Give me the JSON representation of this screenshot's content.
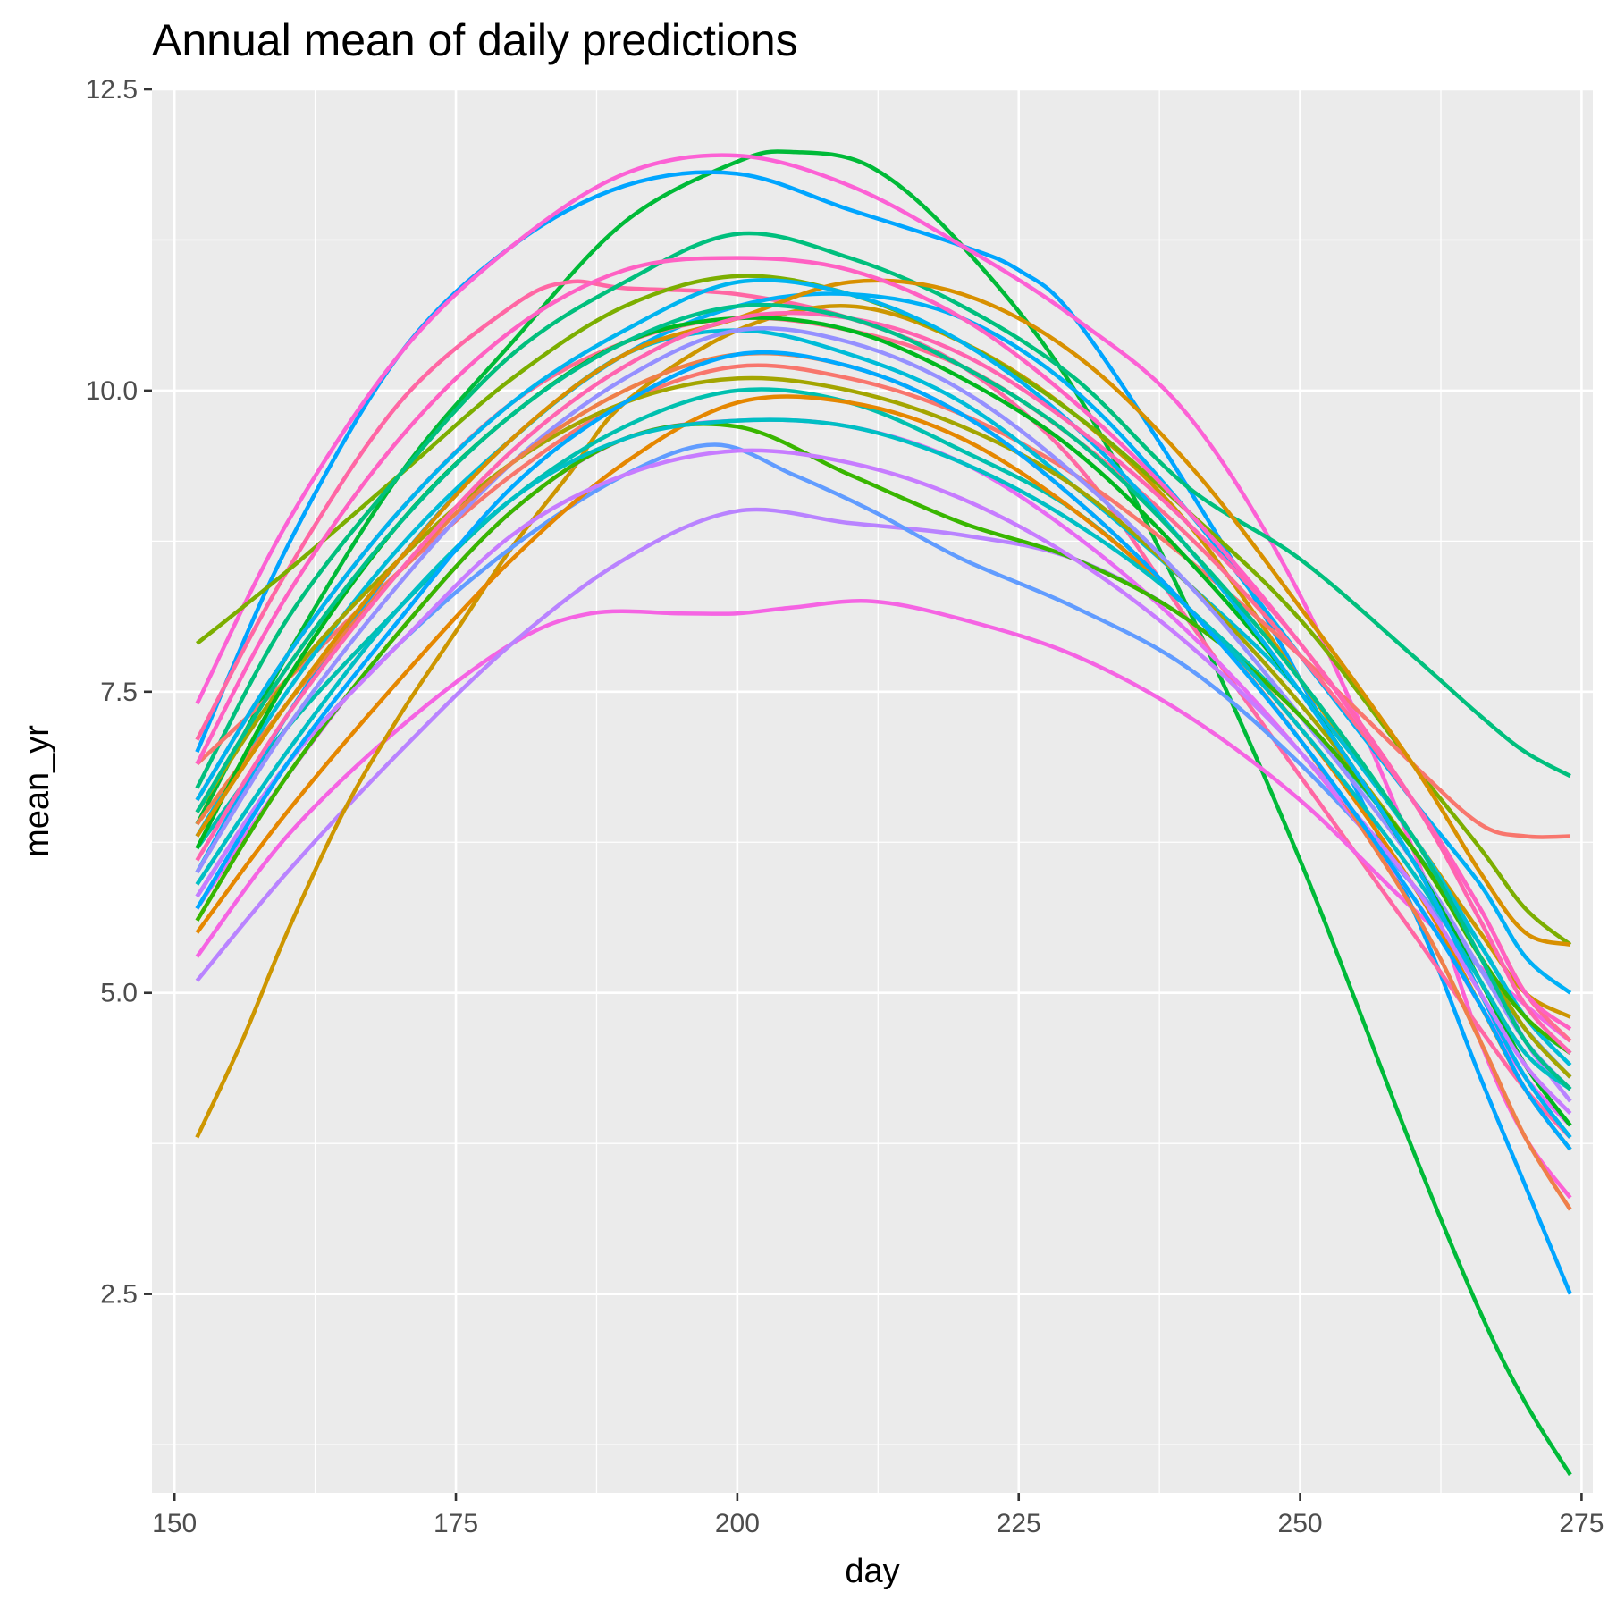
{
  "chart_data": {
    "type": "line",
    "title": "Annual mean of daily predictions",
    "xlabel": "day",
    "ylabel": "mean_yr",
    "xlim": [
      148,
      276
    ],
    "ylim": [
      0.85,
      12.5
    ],
    "x_ticks": [
      150,
      175,
      200,
      225,
      250,
      275
    ],
    "x_tick_labels": [
      "150",
      "175",
      "200",
      "225",
      "250",
      "275"
    ],
    "y_ticks": [
      2.5,
      5.0,
      7.5,
      10.0,
      12.5
    ],
    "y_tick_labels": [
      "2.5",
      "5.0",
      "7.5",
      "10.0",
      "12.5"
    ],
    "grid": true,
    "legend": "none",
    "panel_background": "#ebebeb",
    "series": [
      {
        "color": "#00ba38",
        "x": [
          152,
          160,
          170,
          180,
          190,
          200,
          205,
          212,
          220,
          230,
          240,
          250,
          260,
          266,
          270,
          274
        ],
        "y": [
          6.4,
          7.8,
          9.3,
          10.4,
          11.4,
          11.9,
          11.98,
          11.85,
          11.2,
          10.0,
          8.2,
          6.1,
          3.7,
          2.35,
          1.6,
          1.0
        ]
      },
      {
        "color": "#00a5ff",
        "x": [
          152,
          160,
          170,
          180,
          190,
          200,
          210,
          220,
          225,
          230,
          240,
          250,
          260,
          266,
          270,
          274
        ],
        "y": [
          7.0,
          8.7,
          10.3,
          11.2,
          11.7,
          11.8,
          11.5,
          11.2,
          11.0,
          10.6,
          9.2,
          7.6,
          5.7,
          4.3,
          3.4,
          2.5
        ]
      },
      {
        "color": "#fc61d5",
        "x": [
          152,
          160,
          170,
          180,
          190,
          200,
          210,
          220,
          230,
          240,
          250,
          260,
          266,
          270,
          274
        ],
        "y": [
          7.4,
          8.9,
          10.3,
          11.2,
          11.8,
          11.95,
          11.7,
          11.2,
          10.6,
          9.8,
          8.3,
          6.2,
          4.6,
          3.8,
          3.3
        ]
      },
      {
        "color": "#ff67a4",
        "x": [
          152,
          160,
          170,
          180,
          185,
          190,
          200,
          210,
          220,
          230,
          240,
          250,
          260,
          266,
          270,
          274
        ],
        "y": [
          7.1,
          8.5,
          9.9,
          10.7,
          10.9,
          10.85,
          10.8,
          10.6,
          10.2,
          9.4,
          8.1,
          6.8,
          5.5,
          4.7,
          4.2,
          3.8
        ]
      },
      {
        "color": "#f564e3",
        "x": [
          152,
          160,
          170,
          180,
          187,
          195,
          200,
          205,
          212,
          220,
          230,
          240,
          250,
          260,
          270,
          274
        ],
        "y": [
          5.3,
          6.3,
          7.2,
          7.9,
          8.15,
          8.15,
          8.15,
          8.2,
          8.25,
          8.1,
          7.8,
          7.3,
          6.6,
          5.7,
          4.9,
          4.6
        ]
      },
      {
        "color": "#b983ff",
        "x": [
          152,
          160,
          170,
          180,
          190,
          200,
          210,
          220,
          230,
          240,
          250,
          260,
          266,
          270,
          274
        ],
        "y": [
          5.1,
          6.0,
          7.0,
          7.9,
          8.6,
          9.0,
          8.9,
          8.8,
          8.6,
          8.1,
          7.3,
          6.2,
          5.3,
          4.6,
          4.1
        ]
      },
      {
        "color": "#cd9600",
        "x": [
          152,
          156,
          160,
          165,
          170,
          175,
          180,
          185,
          190,
          200,
          210,
          220,
          230,
          240,
          250,
          260,
          266,
          270,
          274
        ],
        "y": [
          3.8,
          4.6,
          5.5,
          6.5,
          7.3,
          8.0,
          8.7,
          9.3,
          9.9,
          10.5,
          10.7,
          10.4,
          9.8,
          8.9,
          7.6,
          6.3,
          5.5,
          5.0,
          4.8
        ]
      },
      {
        "color": "#7cae00",
        "x": [
          152,
          160,
          170,
          180,
          190,
          200,
          210,
          220,
          230,
          240,
          250,
          260,
          266,
          270,
          274
        ],
        "y": [
          7.9,
          8.5,
          9.3,
          10.1,
          10.7,
          10.95,
          10.8,
          10.4,
          9.8,
          9.0,
          8.1,
          6.9,
          6.2,
          5.7,
          5.4
        ]
      },
      {
        "color": "#00bf7d",
        "x": [
          152,
          160,
          170,
          180,
          190,
          200,
          210,
          220,
          230,
          240,
          250,
          260,
          266,
          270,
          274
        ],
        "y": [
          6.7,
          8.1,
          9.3,
          10.3,
          10.9,
          11.3,
          11.1,
          10.7,
          10.1,
          9.2,
          8.6,
          7.8,
          7.3,
          7.0,
          6.8
        ]
      },
      {
        "color": "#f8766d",
        "x": [
          152,
          160,
          170,
          180,
          190,
          200,
          210,
          220,
          230,
          240,
          250,
          260,
          266,
          270,
          274
        ],
        "y": [
          6.9,
          7.6,
          8.5,
          9.3,
          9.9,
          10.2,
          10.1,
          9.8,
          9.3,
          8.6,
          7.8,
          6.9,
          6.4,
          6.3,
          6.3
        ]
      },
      {
        "color": "#00c0af",
        "x": [
          152,
          160,
          170,
          180,
          190,
          200,
          210,
          220,
          230,
          240,
          250,
          260,
          266,
          270,
          274
        ],
        "y": [
          6.2,
          7.2,
          8.2,
          9.1,
          9.7,
          10.0,
          9.9,
          9.5,
          9.0,
          8.2,
          7.3,
          6.2,
          5.4,
          4.8,
          4.5
        ]
      },
      {
        "color": "#619cff",
        "x": [
          152,
          160,
          170,
          180,
          190,
          198,
          205,
          212,
          220,
          230,
          240,
          250,
          260,
          266,
          270,
          274
        ],
        "y": [
          5.8,
          6.9,
          7.9,
          8.7,
          9.3,
          9.55,
          9.3,
          9.0,
          8.6,
          8.2,
          7.7,
          6.9,
          5.9,
          5.2,
          4.7,
          4.3
        ]
      },
      {
        "color": "#00b0f6",
        "x": [
          152,
          160,
          170,
          180,
          190,
          200,
          210,
          220,
          230,
          240,
          250,
          260,
          266,
          270,
          274
        ],
        "y": [
          6.0,
          7.3,
          8.6,
          9.6,
          10.3,
          10.7,
          10.8,
          10.6,
          10.0,
          9.0,
          7.8,
          6.6,
          5.9,
          5.3,
          5.0
        ]
      },
      {
        "color": "#e76bf3",
        "x": [
          152,
          160,
          170,
          180,
          190,
          200,
          210,
          220,
          230,
          240,
          250,
          260,
          266,
          270,
          274
        ],
        "y": [
          5.7,
          6.8,
          8.0,
          9.0,
          9.6,
          9.75,
          9.7,
          9.4,
          8.8,
          8.0,
          7.0,
          5.8,
          4.9,
          4.3,
          3.9
        ]
      },
      {
        "color": "#00bcd8",
        "x": [
          152,
          160,
          170,
          180,
          190,
          200,
          210,
          220,
          230,
          240,
          250,
          260,
          266,
          270,
          274
        ],
        "y": [
          6.3,
          7.5,
          8.7,
          9.6,
          10.3,
          10.5,
          10.3,
          9.9,
          9.2,
          8.4,
          7.5,
          6.3,
          5.4,
          4.8,
          4.4
        ]
      },
      {
        "color": "#a3a500",
        "x": [
          152,
          160,
          170,
          180,
          190,
          200,
          210,
          220,
          230,
          240,
          250,
          260,
          266,
          270,
          274
        ],
        "y": [
          6.5,
          7.6,
          8.6,
          9.4,
          9.9,
          10.1,
          10.0,
          9.7,
          9.2,
          8.4,
          7.4,
          6.2,
          5.3,
          4.7,
          4.3
        ]
      },
      {
        "color": "#e58700",
        "x": [
          152,
          160,
          170,
          180,
          190,
          200,
          210,
          220,
          230,
          240,
          250,
          260,
          266,
          270,
          274
        ],
        "y": [
          5.5,
          6.5,
          7.6,
          8.6,
          9.4,
          9.9,
          9.9,
          9.6,
          9.0,
          8.2,
          7.2,
          5.9,
          4.9,
          4.2,
          3.7
        ]
      },
      {
        "color": "#ff6c91",
        "x": [
          152,
          160,
          170,
          180,
          190,
          200,
          210,
          220,
          230,
          240,
          250,
          260,
          266,
          270,
          274
        ],
        "y": [
          6.6,
          7.8,
          9.0,
          9.9,
          10.4,
          10.6,
          10.5,
          10.2,
          9.6,
          8.8,
          7.8,
          6.6,
          5.7,
          5.0,
          4.6
        ]
      },
      {
        "color": "#9590ff",
        "x": [
          152,
          160,
          170,
          180,
          190,
          200,
          210,
          220,
          230,
          240,
          250,
          260,
          266,
          270,
          274
        ],
        "y": [
          6.0,
          7.2,
          8.4,
          9.4,
          10.1,
          10.5,
          10.4,
          10.0,
          9.3,
          8.4,
          7.3,
          6.1,
          5.2,
          4.6,
          4.2
        ]
      },
      {
        "color": "#ef7f49",
        "x": [
          152,
          160,
          170,
          180,
          190,
          200,
          210,
          220,
          230,
          240,
          250,
          260,
          266,
          270,
          274
        ],
        "y": [
          6.4,
          7.4,
          8.5,
          9.4,
          10.0,
          10.3,
          10.2,
          9.8,
          9.1,
          8.2,
          7.1,
          5.7,
          4.6,
          3.8,
          3.2
        ]
      },
      {
        "color": "#00b81f",
        "x": [
          152,
          160,
          170,
          180,
          190,
          200,
          210,
          220,
          230,
          240,
          250,
          260,
          266,
          270,
          274
        ],
        "y": [
          6.2,
          7.6,
          8.9,
          9.8,
          10.4,
          10.6,
          10.5,
          10.1,
          9.5,
          8.6,
          7.5,
          6.1,
          5.1,
          4.4,
          3.9
        ]
      },
      {
        "color": "#39b600",
        "x": [
          152,
          160,
          170,
          180,
          190,
          200,
          210,
          220,
          230,
          240,
          250,
          260,
          266,
          270,
          274
        ],
        "y": [
          5.6,
          6.8,
          8.0,
          9.0,
          9.6,
          9.7,
          9.3,
          8.9,
          8.6,
          8.1,
          7.3,
          6.2,
          5.3,
          4.8,
          4.5
        ]
      },
      {
        "color": "#d89000",
        "x": [
          152,
          160,
          170,
          180,
          190,
          200,
          210,
          220,
          230,
          240,
          250,
          260,
          266,
          270,
          274
        ],
        "y": [
          6.3,
          7.4,
          8.6,
          9.6,
          10.3,
          10.6,
          10.9,
          10.8,
          10.3,
          9.4,
          8.2,
          6.9,
          6.0,
          5.5,
          5.4
        ]
      },
      {
        "color": "#00bfc4",
        "x": [
          152,
          160,
          170,
          180,
          190,
          200,
          210,
          220,
          230,
          240,
          250,
          260,
          266,
          270,
          274
        ],
        "y": [
          5.9,
          7.0,
          8.2,
          9.1,
          9.6,
          9.75,
          9.7,
          9.4,
          8.9,
          8.2,
          7.2,
          6.0,
          5.1,
          4.5,
          4.2
        ]
      },
      {
        "color": "#ff61c3",
        "x": [
          152,
          160,
          170,
          180,
          190,
          200,
          210,
          220,
          230,
          240,
          250,
          260,
          266,
          270,
          274
        ],
        "y": [
          6.9,
          8.3,
          9.6,
          10.5,
          11.0,
          11.1,
          11.0,
          10.6,
          9.9,
          9.0,
          7.9,
          6.6,
          5.7,
          5.0,
          4.7
        ]
      },
      {
        "color": "#00b4ef",
        "x": [
          152,
          160,
          170,
          180,
          190,
          200,
          210,
          220,
          230,
          240,
          250,
          260,
          266,
          270,
          274
        ],
        "y": [
          6.6,
          7.8,
          9.0,
          9.9,
          10.5,
          10.9,
          10.8,
          10.4,
          9.7,
          8.7,
          7.5,
          6.1,
          5.0,
          4.3,
          3.8
        ]
      },
      {
        "color": "#c77cff",
        "x": [
          152,
          160,
          170,
          180,
          190,
          200,
          210,
          220,
          230,
          240,
          250,
          260,
          266,
          270,
          274
        ],
        "y": [
          5.8,
          6.9,
          7.9,
          8.8,
          9.3,
          9.5,
          9.4,
          9.1,
          8.6,
          7.9,
          7.0,
          5.9,
          5.0,
          4.4,
          4.0
        ]
      },
      {
        "color": "#00a9ff",
        "x": [
          152,
          160,
          170,
          180,
          190,
          200,
          210,
          220,
          230,
          240,
          250,
          260,
          266,
          270,
          274
        ],
        "y": [
          5.7,
          6.9,
          8.1,
          9.2,
          9.9,
          10.3,
          10.2,
          9.8,
          9.1,
          8.2,
          7.1,
          5.8,
          4.9,
          4.2,
          3.7
        ]
      },
      {
        "color": "#ff64b0",
        "x": [
          152,
          160,
          170,
          180,
          190,
          200,
          210,
          220,
          230,
          240,
          250,
          260,
          266,
          270,
          274
        ],
        "y": [
          6.1,
          7.3,
          8.5,
          9.5,
          10.2,
          10.6,
          10.6,
          10.3,
          9.7,
          8.9,
          7.9,
          6.6,
          5.6,
          4.9,
          4.5
        ]
      },
      {
        "color": "#00c08b",
        "x": [
          152,
          160,
          170,
          180,
          190,
          200,
          210,
          220,
          230,
          240,
          250,
          260,
          266,
          270,
          274
        ],
        "y": [
          6.5,
          7.7,
          8.9,
          9.8,
          10.4,
          10.7,
          10.6,
          10.2,
          9.6,
          8.7,
          7.6,
          6.3,
          5.3,
          4.6,
          4.2
        ]
      }
    ]
  }
}
